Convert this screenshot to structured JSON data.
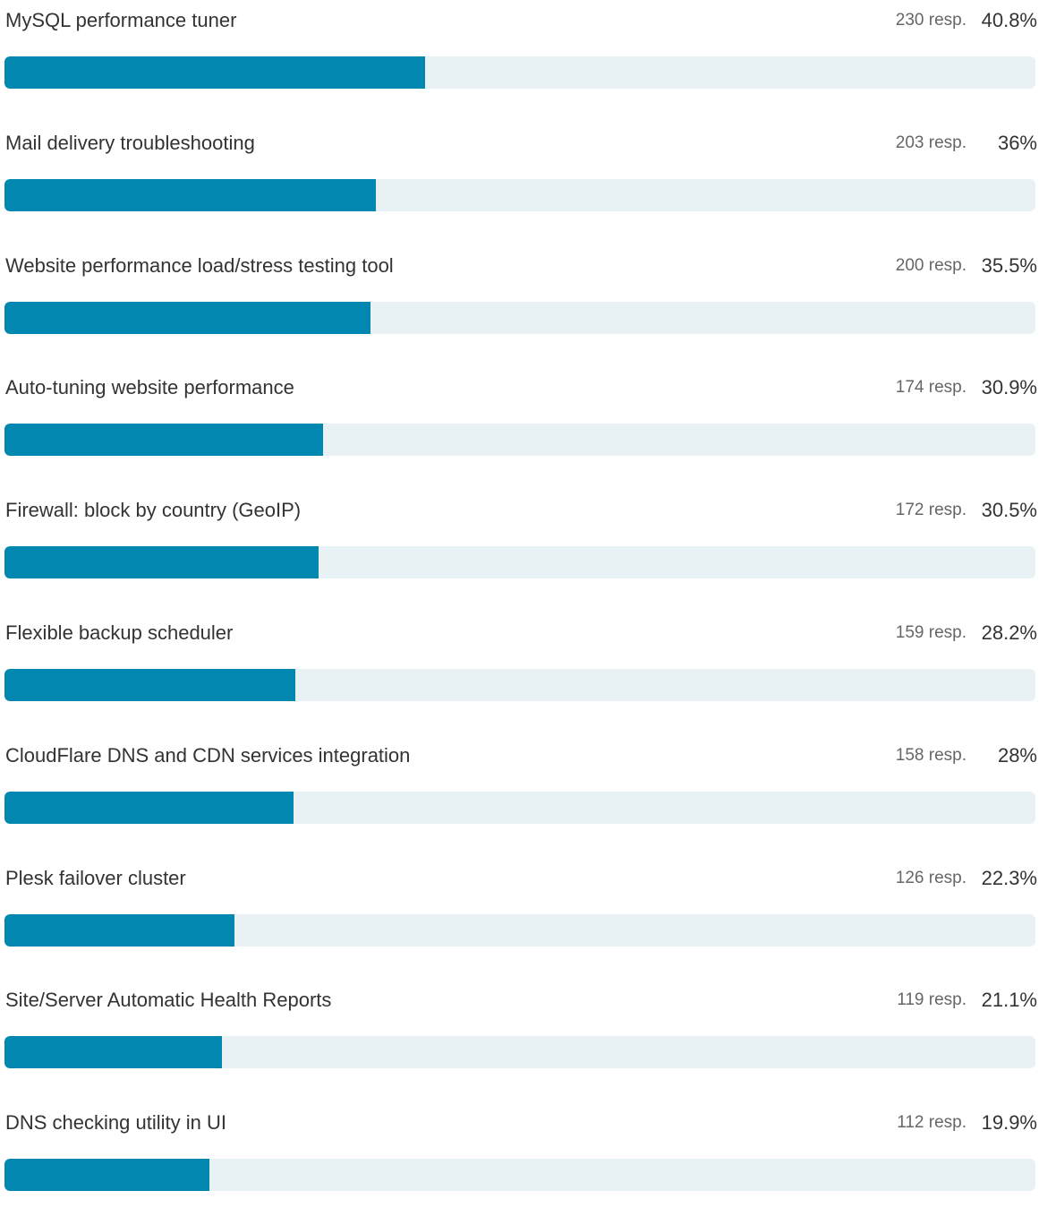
{
  "chart_data": {
    "type": "bar",
    "orientation": "horizontal",
    "xlim": [
      0,
      100
    ],
    "colors": {
      "fill": "#0288b0",
      "track": "#e8f1f4"
    },
    "categories": [
      "MySQL performance tuner",
      "Mail delivery troubleshooting",
      "Website performance load/stress testing tool",
      "Auto-tuning website performance",
      "Firewall: block by country (GeoIP)",
      "Flexible backup scheduler",
      "CloudFlare DNS and CDN services integration",
      "Plesk failover cluster",
      "Site/Server Automatic Health Reports",
      "DNS checking utility in UI"
    ],
    "responses": [
      "230 resp.",
      "203 resp.",
      "200 resp.",
      "174 resp.",
      "172 resp.",
      "159 resp.",
      "158 resp.",
      "126 resp.",
      "119 resp.",
      "112 resp."
    ],
    "percent_labels": [
      "40.8%",
      "36%",
      "35.5%",
      "30.9%",
      "30.5%",
      "28.2%",
      "28%",
      "22.3%",
      "21.1%",
      "19.9%"
    ],
    "values": [
      40.8,
      36,
      35.5,
      30.9,
      30.5,
      28.2,
      28,
      22.3,
      21.1,
      19.9
    ]
  }
}
